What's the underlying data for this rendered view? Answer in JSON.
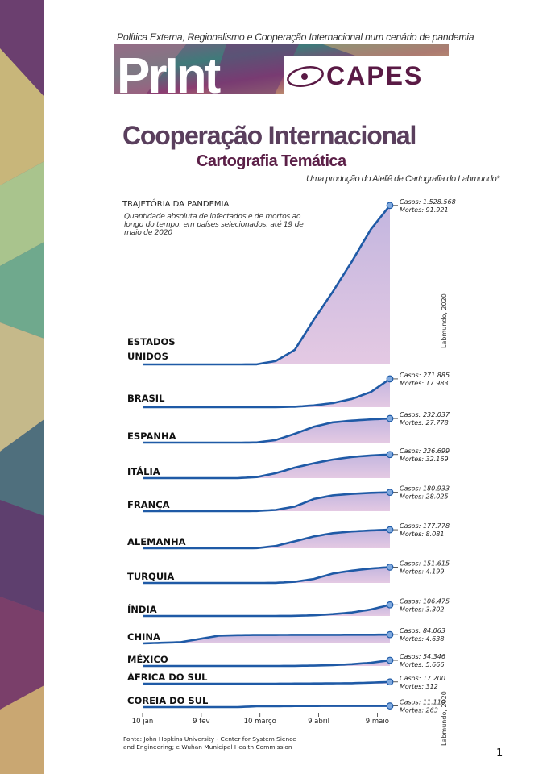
{
  "header": {
    "top_line": "Política Externa, Regionalismo e Cooperação Internacional num cenário de pandemia",
    "print_logo": "PrInt",
    "capes_logo": "CAPES",
    "title": "Cooperação Internacional",
    "subtitle": "Cartografia Temática",
    "credit": "Uma produção do Ateliê de Cartografia do Labmundo*"
  },
  "colors": {
    "title": "#5a3f5d",
    "accent": "#5b1f47",
    "line": "#1f5aa6",
    "marker": "#7fa9df",
    "fill_top": "#c3b6df",
    "fill_bottom": "#e4c9e3"
  },
  "chart_data": {
    "type": "area",
    "title": "TRAJETÓRIA DA PANDEMIA",
    "description": "Quantidade absoluta de infectados e de mortos ao longo do tempo, em  países selecionados, até 19 de maio de 2020",
    "x_unit": "days since 10 jan 2020",
    "x": [
      0,
      20,
      40,
      50,
      60,
      70,
      80,
      90,
      100,
      110,
      120,
      130
    ],
    "y_unit": "cumulative cases (thousands)",
    "xticks": [
      {
        "day": 0,
        "label": "10 jan"
      },
      {
        "day": 30,
        "label": "9 fev"
      },
      {
        "day": 60,
        "label": "10 março"
      },
      {
        "day": 90,
        "label": "9 abril"
      },
      {
        "day": 120,
        "label": "9 maio"
      }
    ],
    "series": [
      {
        "name": "ESTADOS UNIDOS",
        "casos": "Casos: 1.528.568",
        "mortes": "Mortes: 91.921",
        "values": [
          0,
          0,
          0,
          0.1,
          1,
          33,
          140,
          430,
          700,
          990,
          1300,
          1528.568
        ]
      },
      {
        "name": "BRASIL",
        "casos": "Casos: 271.885",
        "mortes": "Mortes: 17.983",
        "values": [
          0,
          0,
          0,
          0,
          0,
          0.9,
          4.6,
          17,
          39,
          79,
          146,
          271.885
        ]
      },
      {
        "name": "ESPANHA",
        "casos": "Casos: 232.037",
        "mortes": "Mortes: 27.778",
        "values": [
          0,
          0,
          0,
          0,
          1.7,
          25,
          85,
          153,
          195,
          212,
          223,
          232.037
        ]
      },
      {
        "name": "ITÁLIA",
        "casos": "Casos: 226.699",
        "mortes": "Mortes: 32.169",
        "values": [
          0,
          0,
          0,
          0.2,
          10,
          47,
          101,
          143,
          178,
          203,
          218,
          226.699
        ]
      },
      {
        "name": "FRANÇA",
        "casos": "Casos: 180.933",
        "mortes": "Mortes: 28.025",
        "values": [
          0,
          0,
          0,
          0,
          1.8,
          12,
          44,
          117,
          152,
          166,
          176,
          180.933
        ]
      },
      {
        "name": "ALEMANHA",
        "casos": "Casos: 177.778",
        "mortes": "Mortes: 8.081",
        "values": [
          0,
          0,
          0,
          0,
          1.2,
          22,
          67,
          113,
          145,
          161,
          171,
          177.778
        ]
      },
      {
        "name": "TURQUIA",
        "casos": "Casos: 151.615",
        "mortes": "Mortes: 4.199",
        "values": [
          0,
          0,
          0,
          0,
          0,
          0.7,
          11,
          38,
          90,
          118,
          138,
          151.615
        ]
      },
      {
        "name": "ÍNDIA",
        "casos": "Casos: 106.475",
        "mortes": "Mortes: 3.302",
        "values": [
          0,
          0,
          0,
          0,
          0,
          0.2,
          1.2,
          6,
          18,
          33,
          62,
          106.475
        ]
      },
      {
        "name": "CHINA",
        "casos": "Casos: 84.063",
        "mortes": "Mortes: 4.638",
        "values": [
          0,
          12,
          74,
          79,
          81,
          81,
          82,
          82,
          82,
          83,
          83,
          84.063
        ]
      },
      {
        "name": "MÉXICO",
        "casos": "Casos: 54.346",
        "mortes": "Mortes: 5.666",
        "values": [
          0,
          0,
          0,
          0,
          0,
          0.1,
          1.1,
          3.4,
          8.3,
          17,
          31,
          54.346
        ]
      },
      {
        "name": "ÁFRICA DO SUL",
        "casos": "Casos: 17.200",
        "mortes": "Mortes: 312",
        "values": [
          0,
          0,
          0,
          0,
          0,
          0.2,
          1.3,
          2,
          3.2,
          5,
          10,
          17.2
        ]
      },
      {
        "name": "COREIA DO SUL",
        "casos": "Casos: 11.110",
        "mortes": "Mortes: 263",
        "values": [
          0,
          0,
          0,
          0.1,
          7.5,
          8.6,
          9.8,
          10.4,
          10.7,
          10.8,
          10.9,
          11.11
        ]
      }
    ],
    "watermark": "Labmundo, 2020"
  },
  "footer": {
    "source_line1": "Fonte:  John Hopkins University - Center for System Sience",
    "source_line2": "and Engineering; e Wuhan Municipal Health Commission",
    "page_number": "1"
  }
}
